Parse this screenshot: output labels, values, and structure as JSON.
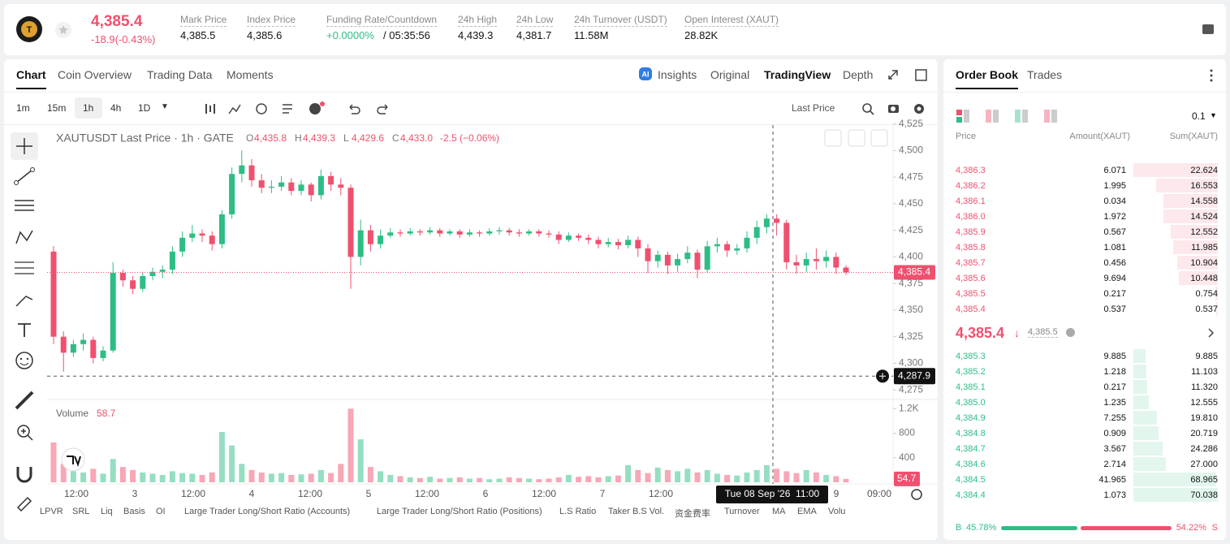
{
  "header": {
    "price": "4,385.4",
    "change": "-18.9(-0.43%)",
    "stats": [
      {
        "label": "Mark Price",
        "value": "4,385.5"
      },
      {
        "label": "Index Price",
        "value": "4,385.6"
      },
      {
        "label": "Funding Rate/Countdown",
        "value": "+0.0000%",
        "countdown": "/ 05:35:56"
      },
      {
        "label": "24h High",
        "value": "4,439.3"
      },
      {
        "label": "24h Low",
        "value": "4,381.7"
      },
      {
        "label": "24h Turnover (USDT)",
        "value": "11.58M"
      },
      {
        "label": "Open Interest (XAUT)",
        "value": "28.82K"
      }
    ]
  },
  "chart_tabs": [
    "Chart",
    "Coin Overview",
    "Trading Data",
    "Moments"
  ],
  "view_tabs": [
    "Insights",
    "Original",
    "TradingView",
    "Depth"
  ],
  "intervals": [
    "1m",
    "15m",
    "1h",
    "4h",
    "1D"
  ],
  "price_source": "Last Price",
  "indicators": [
    "LPVR",
    "SRL",
    "Liq",
    "Basis",
    "OI",
    "Large Trader Long/Short Ratio (Accounts)",
    "Large Trader Long/Short Ratio (Positions)",
    "L.S Ratio",
    "Taker B.S Vol.",
    "资金费率",
    "Turnover",
    "MA",
    "EMA",
    "Volu"
  ],
  "chart_data": {
    "type": "candlestick",
    "title": "XAUTUSDT Last Price · 1h · GATE",
    "ohlc_legend": [
      {
        "key": "O",
        "value": "4,435.8"
      },
      {
        "key": "H",
        "value": "4,439.3"
      },
      {
        "key": "L",
        "value": "4,429.6"
      },
      {
        "key": "C",
        "value": "4,433.0"
      }
    ],
    "legend_change": "-2.5 (−0.06%)",
    "x_labels": [
      "12:00",
      "3",
      "12:00",
      "4",
      "12:00",
      "5",
      "12:00",
      "6",
      "12:00",
      "7",
      "12:00",
      "9",
      "09:00"
    ],
    "up_color": "#2ebd85",
    "down_color": "#f0506e",
    "open": [
      4405,
      4325,
      4310,
      4318,
      4322,
      4305,
      4312,
      4385,
      4378,
      4370,
      4382,
      4386,
      4388,
      4405,
      4418,
      4422,
      4420,
      4412,
      4440,
      4478,
      4486,
      4472,
      4465,
      4466,
      4470,
      4462,
      4468,
      4458,
      4476,
      4468,
      4465,
      4400,
      4425,
      4412,
      4420,
      4423,
      4422,
      4424,
      4423,
      4425,
      4422,
      4424,
      4421,
      4423,
      4422,
      4424,
      4425,
      4423,
      4422,
      4424,
      4422,
      4421,
      4416,
      4420,
      4418,
      4416,
      4412,
      4414,
      4411,
      4416,
      4408,
      4396,
      4402,
      4392,
      4398,
      4404,
      4388,
      4410,
      4412,
      4406,
      4408,
      4418,
      4428,
      4436,
      4432,
      4395,
      4392,
      4398,
      4396,
      4400,
      4390
    ],
    "high": [
      4410,
      4330,
      4322,
      4328,
      4325,
      4316,
      4395,
      4388,
      4382,
      4386,
      4390,
      4392,
      4410,
      4424,
      4430,
      4426,
      4424,
      4444,
      4484,
      4500,
      4492,
      4478,
      4472,
      4476,
      4474,
      4472,
      4470,
      4482,
      4480,
      4474,
      4468,
      4435,
      4430,
      4426,
      4427,
      4426,
      4427,
      4426,
      4428,
      4427,
      4426,
      4426,
      4426,
      4425,
      4427,
      4428,
      4427,
      4426,
      4426,
      4426,
      4425,
      4424,
      4423,
      4422,
      4421,
      4419,
      4418,
      4417,
      4420,
      4419,
      4412,
      4406,
      4405,
      4403,
      4410,
      4407,
      4415,
      4418,
      4415,
      4412,
      4424,
      4434,
      4440,
      4440,
      4435,
      4402,
      4404,
      4408,
      4406,
      4404,
      4392
    ],
    "low": [
      4318,
      4292,
      4306,
      4312,
      4300,
      4302,
      4310,
      4372,
      4365,
      4367,
      4378,
      4380,
      4384,
      4400,
      4414,
      4414,
      4406,
      4408,
      4436,
      4470,
      4466,
      4460,
      4460,
      4462,
      4458,
      4458,
      4452,
      4454,
      4462,
      4458,
      4370,
      4392,
      4405,
      4408,
      4418,
      4419,
      4420,
      4420,
      4421,
      4419,
      4420,
      4418,
      4419,
      4419,
      4420,
      4421,
      4420,
      4419,
      4420,
      4419,
      4418,
      4412,
      4414,
      4415,
      4412,
      4408,
      4409,
      4407,
      4408,
      4400,
      4385,
      4390,
      4384,
      4386,
      4394,
      4380,
      4385,
      4404,
      4400,
      4402,
      4404,
      4412,
      4422,
      4420,
      4388,
      4384,
      4386,
      4388,
      4390,
      4384,
      4383
    ],
    "close": [
      4325,
      4310,
      4318,
      4322,
      4305,
      4312,
      4385,
      4378,
      4370,
      4382,
      4386,
      4388,
      4405,
      4418,
      4422,
      4420,
      4412,
      4440,
      4478,
      4486,
      4472,
      4465,
      4466,
      4470,
      4462,
      4468,
      4458,
      4476,
      4468,
      4465,
      4400,
      4425,
      4412,
      4420,
      4423,
      4422,
      4424,
      4423,
      4425,
      4422,
      4424,
      4421,
      4423,
      4422,
      4424,
      4425,
      4423,
      4422,
      4424,
      4422,
      4421,
      4416,
      4420,
      4418,
      4416,
      4412,
      4414,
      4411,
      4416,
      4408,
      4396,
      4402,
      4392,
      4398,
      4404,
      4388,
      4410,
      4412,
      4406,
      4408,
      4418,
      4428,
      4436,
      4432,
      4395,
      4392,
      4398,
      4396,
      4400,
      4390,
      4385.4
    ],
    "ylim": [
      4266,
      4527
    ],
    "yticks": [
      {
        "value": 4275,
        "label": "4,275"
      },
      {
        "value": 4300,
        "label": "4,300"
      },
      {
        "value": 4325,
        "label": "4,325"
      },
      {
        "value": 4350,
        "label": "4,350"
      },
      {
        "value": 4375,
        "label": "4,375"
      },
      {
        "value": 4400,
        "label": "4,400"
      },
      {
        "value": 4425,
        "label": "4,425"
      },
      {
        "value": 4450,
        "label": "4,450"
      },
      {
        "value": 4475,
        "label": "4,475"
      },
      {
        "value": 4500,
        "label": "4,500"
      },
      {
        "value": 4525,
        "label": "4,525"
      }
    ],
    "last_price": {
      "value": 4385.4,
      "label": "4,385.4"
    },
    "crosshair": {
      "price": {
        "value": 4287.9,
        "label": "4,287.9"
      },
      "time": "Tue 08 Sep '26  11:00"
    },
    "volume": {
      "title": "Volume",
      "legend_value": 58.7,
      "values": [
        650,
        300,
        180,
        160,
        220,
        140,
        380,
        250,
        200,
        160,
        140,
        120,
        180,
        150,
        140,
        120,
        160,
        820,
        600,
        300,
        200,
        160,
        140,
        150,
        120,
        130,
        140,
        200,
        150,
        300,
        1200,
        700,
        250,
        180,
        120,
        100,
        80,
        70,
        90,
        60,
        70,
        80,
        60,
        70,
        50,
        60,
        80,
        70,
        60,
        50,
        60,
        80,
        120,
        90,
        100,
        80,
        100,
        110,
        280,
        200,
        150,
        240,
        200,
        180,
        220,
        160,
        200,
        140,
        120,
        110,
        160,
        200,
        280,
        220,
        180,
        150,
        200,
        160,
        120,
        100,
        54.7
      ],
      "ylim": [
        0,
        1270
      ],
      "yticks": [
        400,
        800,
        {
          "value": 1200,
          "label": "1.2K"
        }
      ]
    }
  },
  "order_book": {
    "tabs": [
      "Order Book",
      "Trades"
    ],
    "precision": "0.1",
    "columns": [
      "Price",
      "Amount(XAUT)",
      "Sum(XAUT)"
    ],
    "asks": [
      {
        "price": "4,386.3",
        "amount": "6.071",
        "sum": {
          "value": 22.624,
          "label": "22.624"
        }
      },
      {
        "price": "4,386.2",
        "amount": "1.995",
        "sum": {
          "value": 16.553,
          "label": "16.553"
        }
      },
      {
        "price": "4,386.1",
        "amount": "0.034",
        "sum": {
          "value": 14.558,
          "label": "14.558"
        }
      },
      {
        "price": "4,386.0",
        "amount": "1.972",
        "sum": {
          "value": 14.524,
          "label": "14.524"
        }
      },
      {
        "price": "4,385.9",
        "amount": "0.567",
        "sum": {
          "value": 12.552,
          "label": "12.552"
        }
      },
      {
        "price": "4,385.8",
        "amount": "1.081",
        "sum": {
          "value": 11.985,
          "label": "11.985"
        }
      },
      {
        "price": "4,385.7",
        "amount": "0.456",
        "sum": {
          "value": 10.904,
          "label": "10.904"
        }
      },
      {
        "price": "4,385.6",
        "amount": "9.694",
        "sum": {
          "value": 10.448,
          "label": "10.448"
        }
      },
      {
        "price": "4,385.5",
        "amount": "0.217",
        "sum": {
          "value": 0.754,
          "label": "0.754"
        }
      },
      {
        "price": "4,385.4",
        "amount": "0.537",
        "sum": {
          "value": 0.537,
          "label": "0.537"
        }
      }
    ],
    "last_price": "4,385.4",
    "mark_price": "4,385.5",
    "bids": [
      {
        "price": "4,385.3",
        "amount": "9.885",
        "sum": {
          "value": 9.885,
          "label": "9.885"
        }
      },
      {
        "price": "4,385.2",
        "amount": "1.218",
        "sum": {
          "value": 11.103,
          "label": "11.103"
        }
      },
      {
        "price": "4,385.1",
        "amount": "0.217",
        "sum": {
          "value": 11.32,
          "label": "11.320"
        }
      },
      {
        "price": "4,385.0",
        "amount": "1.235",
        "sum": {
          "value": 12.555,
          "label": "12.555"
        }
      },
      {
        "price": "4,384.9",
        "amount": "7.255",
        "sum": {
          "value": 19.81,
          "label": "19.810"
        }
      },
      {
        "price": "4,384.8",
        "amount": "0.909",
        "sum": {
          "value": 20.719,
          "label": "20.719"
        }
      },
      {
        "price": "4,384.7",
        "amount": "3.567",
        "sum": {
          "value": 24.286,
          "label": "24.286"
        }
      },
      {
        "price": "4,384.6",
        "amount": "2.714",
        "sum": {
          "value": 27,
          "label": "27.000"
        }
      },
      {
        "price": "4,384.5",
        "amount": "41.965",
        "sum": {
          "value": 68.965,
          "label": "68.965"
        }
      },
      {
        "price": "4,384.4",
        "amount": "1.073",
        "sum": {
          "value": 70.038,
          "label": "70.038"
        }
      }
    ],
    "ratio": {
      "labels": [
        "B",
        "S"
      ],
      "values": [
        45.78,
        54.22
      ],
      "value_labels": [
        "45.78%",
        "54.22%"
      ]
    }
  }
}
